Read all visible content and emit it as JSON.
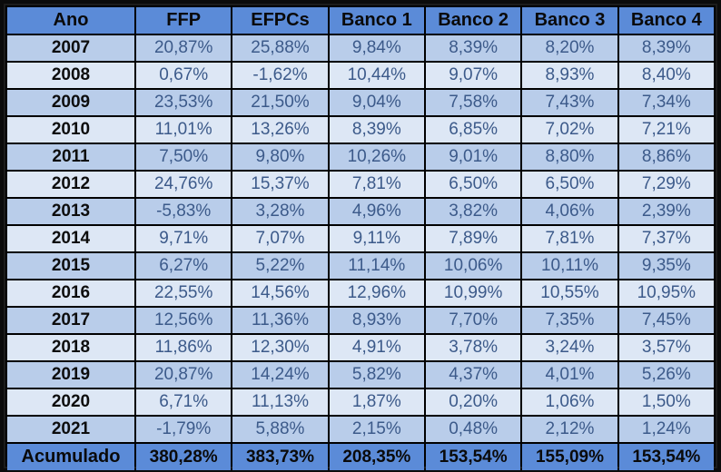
{
  "table": {
    "headers": [
      "Ano",
      "FFP",
      "EFPCs",
      "Banco 1",
      "Banco 2",
      "Banco 3",
      "Banco 4"
    ],
    "rows": [
      [
        "2007",
        "20,87%",
        "25,88%",
        "9,84%",
        "8,39%",
        "8,20%",
        "8,39%"
      ],
      [
        "2008",
        "0,67%",
        "-1,62%",
        "10,44%",
        "9,07%",
        "8,93%",
        "8,40%"
      ],
      [
        "2009",
        "23,53%",
        "21,50%",
        "9,04%",
        "7,58%",
        "7,43%",
        "7,34%"
      ],
      [
        "2010",
        "11,01%",
        "13,26%",
        "8,39%",
        "6,85%",
        "7,02%",
        "7,21%"
      ],
      [
        "2011",
        "7,50%",
        "9,80%",
        "10,26%",
        "9,01%",
        "8,80%",
        "8,86%"
      ],
      [
        "2012",
        "24,76%",
        "15,37%",
        "7,81%",
        "6,50%",
        "6,50%",
        "7,29%"
      ],
      [
        "2013",
        "-5,83%",
        "3,28%",
        "4,96%",
        "3,82%",
        "4,06%",
        "2,39%"
      ],
      [
        "2014",
        "9,71%",
        "7,07%",
        "9,11%",
        "7,89%",
        "7,81%",
        "7,37%"
      ],
      [
        "2015",
        "6,27%",
        "5,22%",
        "11,14%",
        "10,06%",
        "10,11%",
        "9,35%"
      ],
      [
        "2016",
        "22,55%",
        "14,56%",
        "12,96%",
        "10,99%",
        "10,55%",
        "10,95%"
      ],
      [
        "2017",
        "12,56%",
        "11,36%",
        "8,93%",
        "7,70%",
        "7,35%",
        "7,45%"
      ],
      [
        "2018",
        "11,86%",
        "12,30%",
        "4,91%",
        "3,78%",
        "3,24%",
        "3,57%"
      ],
      [
        "2019",
        "20,87%",
        "14,24%",
        "5,82%",
        "4,37%",
        "4,01%",
        "5,26%"
      ],
      [
        "2020",
        "6,71%",
        "11,13%",
        "1,87%",
        "0,20%",
        "1,06%",
        "1,50%"
      ],
      [
        "2021",
        "-1,79%",
        "5,88%",
        "2,15%",
        "0,48%",
        "2,12%",
        "1,24%"
      ]
    ],
    "footer": [
      "Acumulado",
      "380,28%",
      "383,73%",
      "208,35%",
      "153,54%",
      "155,09%",
      "153,54%"
    ]
  },
  "colors": {
    "header_bg": "#5b8bd8",
    "row_odd_bg": "#b9cdea",
    "row_even_bg": "#dde7f5",
    "value_text": "#3c5a8a",
    "border": "#000000"
  }
}
